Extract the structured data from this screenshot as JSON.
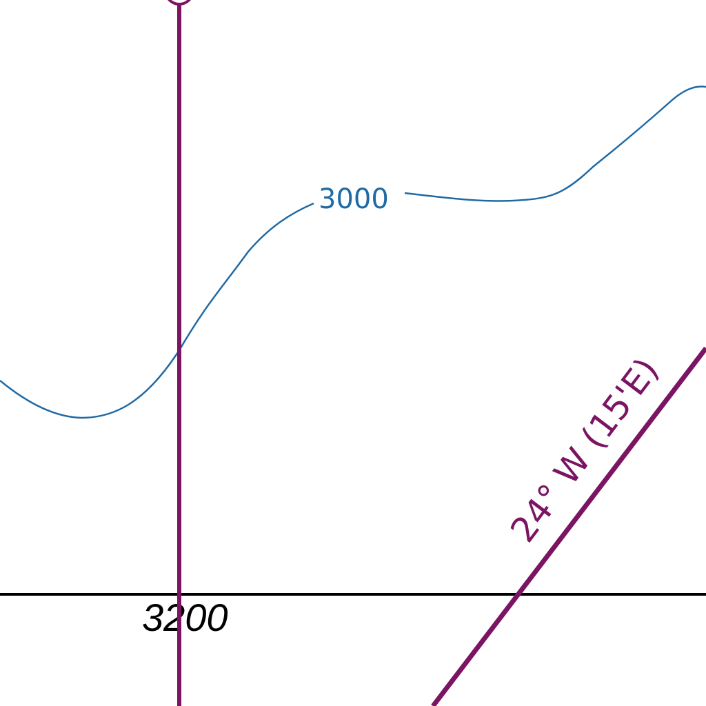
{
  "colors": {
    "background": "#ffffff",
    "contour": "#1f6aa5",
    "declination": "#7a1463",
    "grid_line": "#000000",
    "grid_label": "#000000"
  },
  "contour": {
    "elevation_label": "3000"
  },
  "grid": {
    "easting_label": "3200"
  },
  "declination": {
    "label": "24° W (15'E)"
  }
}
